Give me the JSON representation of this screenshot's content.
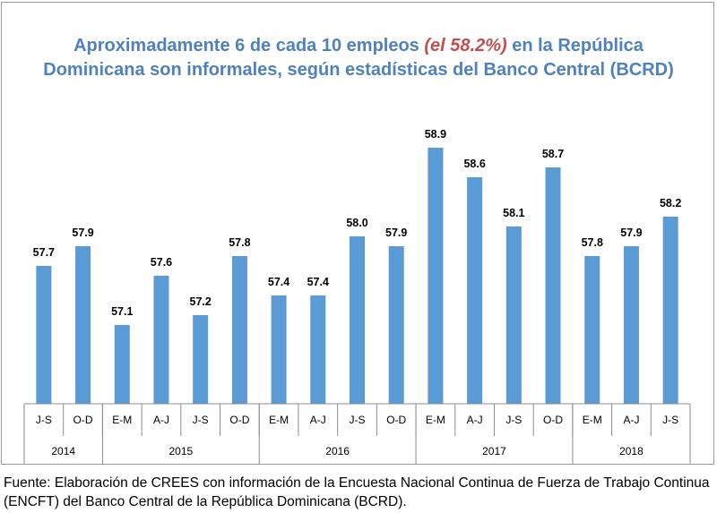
{
  "title": {
    "line1_before": "Aproximadamente 6 de cada 10 empleos ",
    "line1_highlight": "(el 58.2%)",
    "line1_after": " en la República",
    "line2": "Dominicana son informales, según estadísticas del Banco Central (BCRD)"
  },
  "colors": {
    "bar": "#5b9bd5",
    "title": "#4f81bd",
    "highlight": "#c0504d"
  },
  "chart_data": {
    "type": "bar",
    "title": "Aproximadamente 6 de cada 10 empleos (el 58.2%) en la República Dominicana son informales, según estadísticas del Banco Central (BCRD)",
    "categories": [
      "J-S",
      "O-D",
      "E-M",
      "A-J",
      "J-S",
      "O-D",
      "E-M",
      "A-J",
      "J-S",
      "O-D",
      "E-M",
      "A-J",
      "J-S",
      "O-D",
      "E-M",
      "A-J",
      "J-S"
    ],
    "values": [
      57.7,
      57.9,
      57.1,
      57.6,
      57.2,
      57.8,
      57.4,
      57.4,
      58.0,
      57.9,
      58.9,
      58.6,
      58.1,
      58.7,
      57.8,
      57.9,
      58.2
    ],
    "labels": [
      "57.7",
      "57.9",
      "57.1",
      "57.6",
      "57.2",
      "57.8",
      "57.4",
      "57.4",
      "58.0",
      "57.9",
      "58.9",
      "58.6",
      "58.1",
      "58.7",
      "57.8",
      "57.9",
      "58.2"
    ],
    "groups": [
      {
        "label": "2014",
        "count": 2
      },
      {
        "label": "2015",
        "count": 4
      },
      {
        "label": "2016",
        "count": 4
      },
      {
        "label": "2017",
        "count": 4
      },
      {
        "label": "2018",
        "count": 3
      }
    ],
    "ylim": [
      56.3,
      59.0
    ],
    "xlabel": "",
    "ylabel": "",
    "legend": "none",
    "grid": false
  },
  "footnote": "Fuente: Elaboración de CREES con información de la Encuesta Nacional Continua de Fuerza de Trabajo Continua (ENCFT) del Banco Central de la República Dominicana (BCRD)."
}
